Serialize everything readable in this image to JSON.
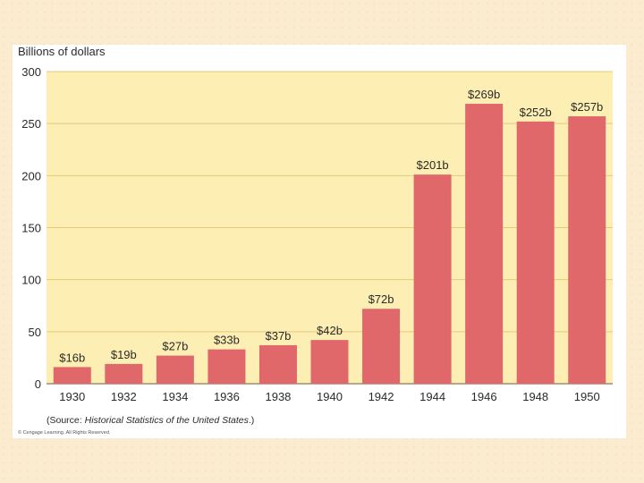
{
  "chart_data": {
    "type": "bar",
    "ylabel": "Billions of dollars",
    "categories": [
      "1930",
      "1932",
      "1934",
      "1936",
      "1938",
      "1940",
      "1942",
      "1944",
      "1946",
      "1948",
      "1950"
    ],
    "values": [
      16,
      19,
      27,
      33,
      37,
      42,
      72,
      201,
      269,
      252,
      257
    ],
    "data_labels": [
      "$16b",
      "$19b",
      "$27b",
      "$33b",
      "$37b",
      "$42b",
      "$72b",
      "$201b",
      "$269b",
      "$252b",
      "$257b"
    ],
    "yticks": [
      0,
      50,
      100,
      150,
      200,
      250,
      300
    ],
    "ylim": [
      0,
      300
    ],
    "colors": {
      "bar": "#e0676a",
      "plot_bg": "#fdefb3",
      "grid": "#e5c97a"
    }
  },
  "source": {
    "prefix": "(Source: ",
    "title": "Historical Statistics of the United States",
    "suffix": ".)"
  },
  "copyright": "© Cengage Learning. All Rights Reserved."
}
